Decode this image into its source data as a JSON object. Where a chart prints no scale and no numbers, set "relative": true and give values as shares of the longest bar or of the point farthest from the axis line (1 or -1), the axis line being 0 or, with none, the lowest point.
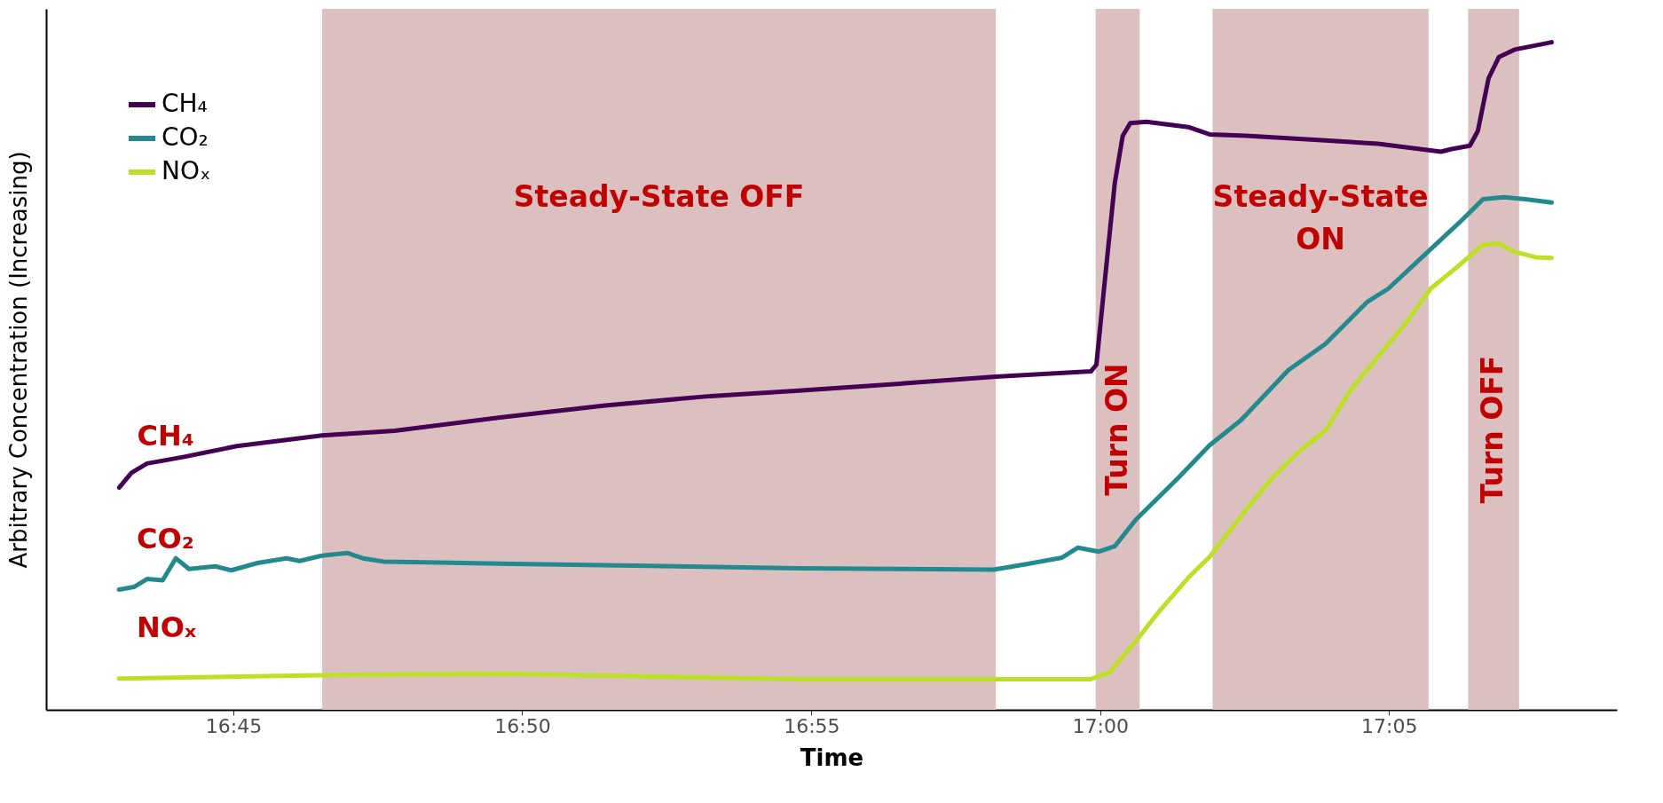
{
  "chart_data": {
    "type": "line",
    "xlabel": "Time",
    "ylabel": "Arbitrary Concentration (Increasing)",
    "relative": true,
    "grid": false,
    "legend": "top left",
    "xlim": [
      16.696,
      17.149
    ],
    "xticks": [
      {
        "value": 16.75,
        "label": "16:45"
      },
      {
        "value": 16.8333,
        "label": "16:50"
      },
      {
        "value": 16.9167,
        "label": "16:55"
      },
      {
        "value": 17,
        "label": "17:00"
      },
      {
        "value": 17.0833,
        "label": "17:05"
      }
    ],
    "series": [
      {
        "name": "CH₄",
        "color": "#440154",
        "x": [
          16.7171,
          16.7206,
          16.7251,
          16.7358,
          16.751,
          16.7756,
          16.7965,
          16.8269,
          16.8572,
          16.8876,
          16.9131,
          16.9435,
          16.9699,
          16.9973,
          16.9989,
          17.0011,
          17.0042,
          17.0065,
          17.0087,
          17.0133,
          17.0254,
          17.0315,
          17.0421,
          17.0649,
          17.0801,
          17.0983,
          17.1013,
          17.1066,
          17.1089,
          17.112,
          17.115,
          17.1195,
          17.1302
        ],
        "values": [
          0.333,
          0.355,
          0.369,
          0.379,
          0.395,
          0.411,
          0.418,
          0.438,
          0.456,
          0.47,
          0.478,
          0.489,
          0.499,
          0.507,
          0.517,
          0.631,
          0.789,
          0.86,
          0.879,
          0.881,
          0.873,
          0.862,
          0.86,
          0.853,
          0.848,
          0.836,
          0.84,
          0.845,
          0.867,
          0.946,
          0.978,
          0.989,
          1.0
        ]
      },
      {
        "name": "CO₂",
        "color": "#23898e",
        "x": [
          16.717,
          16.7213,
          16.7251,
          16.7296,
          16.7334,
          16.7372,
          16.7448,
          16.7494,
          16.757,
          16.7653,
          16.7691,
          16.7755,
          16.7828,
          16.7873,
          16.7934,
          16.8268,
          16.9131,
          16.9693,
          16.9784,
          16.989,
          16.9936,
          16.9996,
          17.0042,
          17.0103,
          17.0224,
          17.0315,
          17.0406,
          17.0543,
          17.0649,
          17.077,
          17.0831,
          17.0953,
          17.1044,
          17.1104,
          17.1165,
          17.1226,
          17.1302
        ],
        "values": [
          0.18,
          0.184,
          0.196,
          0.194,
          0.227,
          0.211,
          0.215,
          0.209,
          0.22,
          0.227,
          0.223,
          0.231,
          0.235,
          0.227,
          0.222,
          0.219,
          0.212,
          0.21,
          0.218,
          0.228,
          0.243,
          0.237,
          0.245,
          0.285,
          0.347,
          0.396,
          0.434,
          0.509,
          0.548,
          0.611,
          0.631,
          0.69,
          0.734,
          0.765,
          0.768,
          0.765,
          0.76
        ]
      },
      {
        "name": "NOₓ",
        "color": "#bddf26",
        "x": [
          16.717,
          16.7755,
          16.8268,
          16.9131,
          16.9973,
          17.0027,
          17.0103,
          17.0163,
          17.0254,
          17.0315,
          17.0421,
          17.0497,
          17.0573,
          17.0649,
          17.0725,
          17.0801,
          17.0877,
          17.0953,
          17.1029,
          17.1104,
          17.115,
          17.1195,
          17.1256,
          17.1302
        ],
        "values": [
          0.047,
          0.052,
          0.054,
          0.046,
          0.046,
          0.056,
          0.103,
          0.143,
          0.198,
          0.229,
          0.3,
          0.348,
          0.387,
          0.418,
          0.481,
          0.529,
          0.576,
          0.631,
          0.663,
          0.697,
          0.698,
          0.686,
          0.678,
          0.677
        ]
      }
    ],
    "bands": [
      {
        "axis": "x",
        "from": 16.7756,
        "to": 16.9699,
        "label": "Steady-State OFF",
        "color": "#dcc0c0"
      },
      {
        "axis": "x",
        "from": 16.9987,
        "to": 17.0114,
        "label": "Turn ON",
        "color": "#dcc0c0"
      },
      {
        "axis": "x",
        "from": 17.0324,
        "to": 17.0947,
        "label": "Steady-State ON",
        "color": "#dcc0c0"
      },
      {
        "axis": "x",
        "from": 17.1061,
        "to": 17.1208,
        "label": "Turn OFF",
        "color": "#dcc0c0"
      }
    ],
    "annotations": [
      "CH₄",
      "CO₂",
      "NOₓ"
    ]
  }
}
